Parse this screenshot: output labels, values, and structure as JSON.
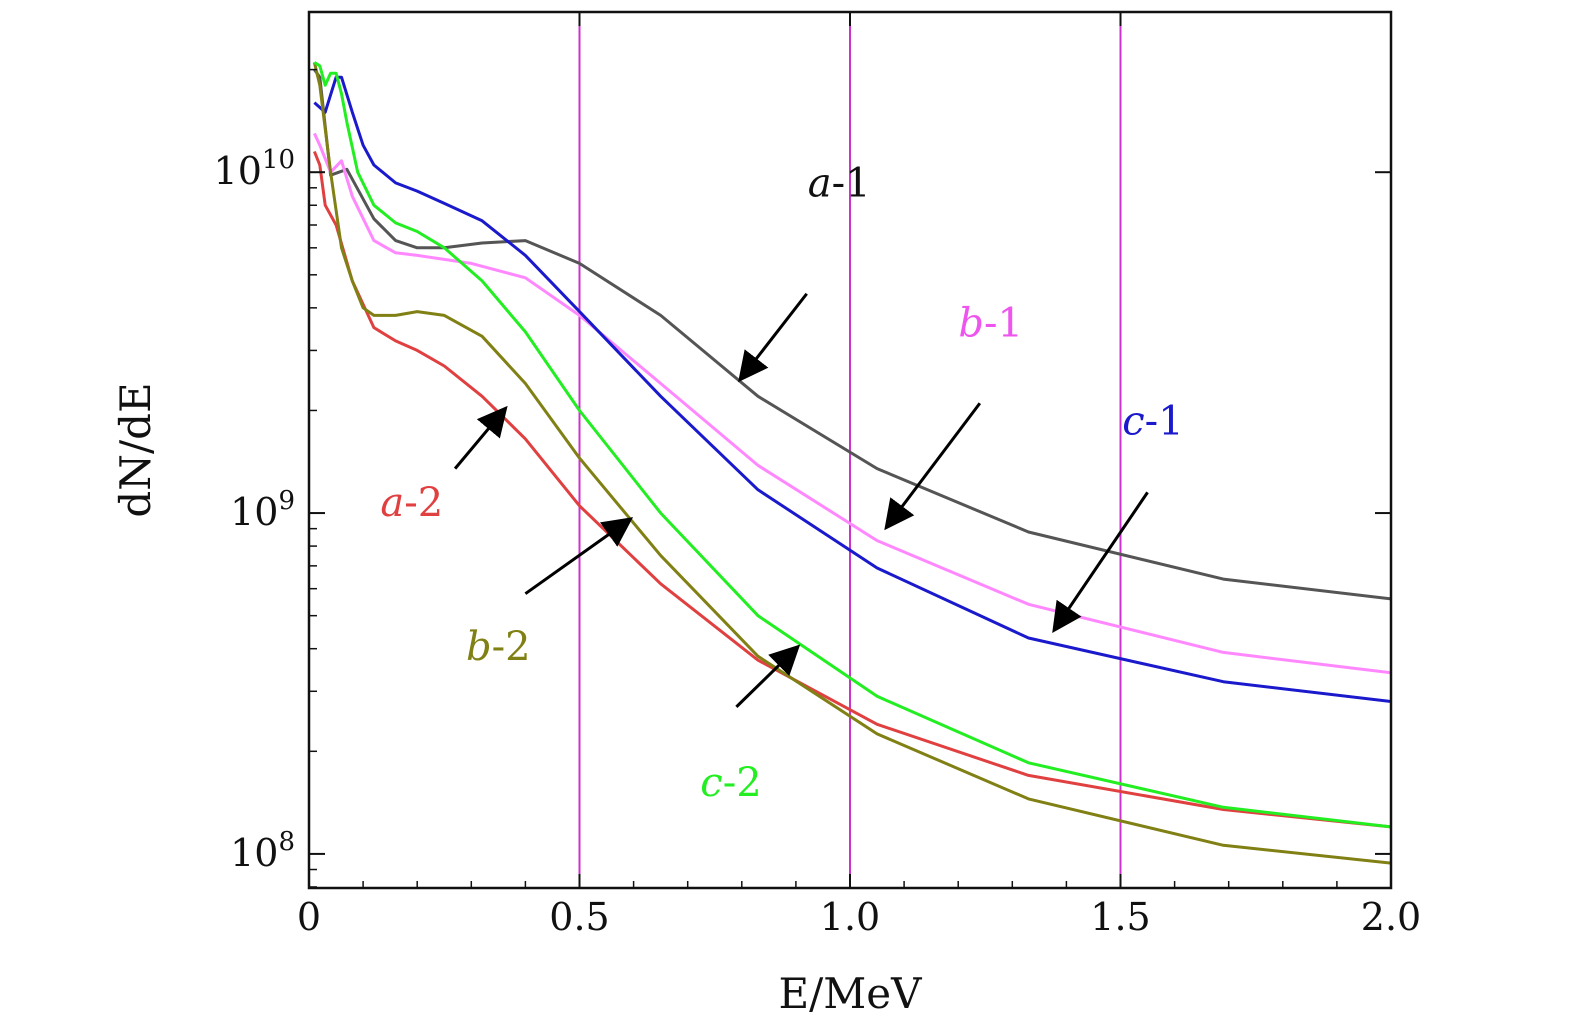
{
  "chart_data": {
    "type": "line",
    "title": "",
    "xlabel": "E/MeV",
    "ylabel": "dN/dE",
    "xlim": [
      0,
      2.0
    ],
    "ylim_log10": [
      7.9,
      10.47
    ],
    "y_scale": "log",
    "x_ticks": [
      0,
      0.5,
      1.0,
      1.5,
      2.0
    ],
    "x_tick_labels": [
      "0",
      "0.5",
      "1.0",
      "1.5",
      "2.0"
    ],
    "y_ticks": [
      100000000,
      1000000000,
      10000000000
    ],
    "y_tick_labels": [
      {
        "base": "10",
        "exp": "8"
      },
      {
        "base": "10",
        "exp": "9"
      },
      {
        "base": "10",
        "exp": "10"
      }
    ],
    "vertical_lines": [
      0.5,
      1.0,
      1.5
    ],
    "vertical_line_color": "#cc33cc",
    "series": [
      {
        "name": "a-1",
        "color": "#555555",
        "x": [
          0.01,
          0.02,
          0.04,
          0.07,
          0.12,
          0.16,
          0.2,
          0.25,
          0.32,
          0.4,
          0.5,
          0.65,
          0.83,
          1.05,
          1.33,
          1.69,
          2.0
        ],
        "y": [
          20000000000,
          19000000000,
          9800000000,
          10200000000,
          7300000000,
          6300000000,
          6000000000,
          6000000000,
          6200000000,
          6300000000,
          5400000000,
          3800000000,
          2200000000,
          1350000000,
          880000000,
          640000000,
          560000000
        ]
      },
      {
        "name": "b-1",
        "color": "#ff88ff",
        "x": [
          0.01,
          0.02,
          0.04,
          0.06,
          0.08,
          0.12,
          0.16,
          0.2,
          0.3,
          0.4,
          0.5,
          0.65,
          0.83,
          1.05,
          1.33,
          1.69,
          2.0
        ],
        "y": [
          13000000000,
          12000000000,
          10000000000,
          10800000000,
          8500000000,
          6300000000,
          5800000000,
          5700000000,
          5400000000,
          4900000000,
          3800000000,
          2400000000,
          1380000000,
          830000000,
          540000000,
          390000000,
          340000000
        ]
      },
      {
        "name": "c-1",
        "color": "#1a1acc",
        "x": [
          0.01,
          0.03,
          0.05,
          0.06,
          0.08,
          0.1,
          0.12,
          0.16,
          0.2,
          0.25,
          0.32,
          0.4,
          0.5,
          0.65,
          0.83,
          1.05,
          1.33,
          1.69,
          2.0
        ],
        "y": [
          16000000000,
          15000000000,
          19000000000,
          19000000000,
          15000000000,
          12000000000,
          10500000000,
          9300000000,
          8800000000,
          8100000000,
          7200000000,
          5700000000,
          3900000000,
          2200000000,
          1170000000,
          690000000,
          430000000,
          320000000,
          280000000
        ]
      },
      {
        "name": "a-2",
        "color": "#e04040",
        "x": [
          0.01,
          0.02,
          0.03,
          0.05,
          0.08,
          0.12,
          0.16,
          0.2,
          0.25,
          0.32,
          0.4,
          0.5,
          0.65,
          0.83,
          1.05,
          1.33,
          1.69,
          2.0
        ],
        "y": [
          11500000000,
          10500000000,
          8000000000,
          7000000000,
          4800000000,
          3500000000,
          3200000000,
          3000000000,
          2700000000,
          2200000000,
          1650000000,
          1050000000,
          620000000,
          370000000,
          240000000,
          170000000,
          135000000,
          120000000
        ]
      },
      {
        "name": "b-2",
        "color": "#808015",
        "x": [
          0.01,
          0.02,
          0.04,
          0.06,
          0.08,
          0.1,
          0.12,
          0.16,
          0.2,
          0.25,
          0.32,
          0.4,
          0.5,
          0.65,
          0.83,
          1.05,
          1.33,
          1.69,
          2.0
        ],
        "y": [
          21000000000,
          18000000000,
          10000000000,
          6000000000,
          4800000000,
          4000000000,
          3800000000,
          3800000000,
          3900000000,
          3800000000,
          3300000000,
          2400000000,
          1450000000,
          750000000,
          380000000,
          225000000,
          145000000,
          106000000,
          94000000
        ]
      },
      {
        "name": "c-2",
        "color": "#22ee22",
        "x": [
          0.01,
          0.02,
          0.03,
          0.04,
          0.05,
          0.06,
          0.07,
          0.09,
          0.12,
          0.16,
          0.2,
          0.25,
          0.32,
          0.4,
          0.5,
          0.65,
          0.83,
          1.05,
          1.33,
          1.69,
          2.0
        ],
        "y": [
          21000000000,
          20500000000,
          18000000000,
          19500000000,
          19500000000,
          17000000000,
          14000000000,
          10000000000,
          8000000000,
          7100000000,
          6700000000,
          6000000000,
          4800000000,
          3400000000,
          2000000000,
          1000000000,
          500000000,
          290000000,
          185000000,
          137000000,
          120000000
        ]
      }
    ],
    "annotations": [
      {
        "series": "a-1",
        "var": "a",
        "suffix": "-1",
        "color": "#111111",
        "label_at": [
          0.98,
          8500000000
        ],
        "arrow_from": [
          0.92,
          4400000000
        ],
        "arrow_to": [
          0.8,
          2500000000
        ]
      },
      {
        "series": "b-1",
        "var": "b",
        "suffix": "-1",
        "color": "#ee55ee",
        "label_at": [
          1.26,
          3300000000
        ],
        "arrow_from": [
          1.24,
          2100000000
        ],
        "arrow_to": [
          1.07,
          920000000
        ]
      },
      {
        "series": "c-1",
        "var": "c",
        "suffix": "-1",
        "color": "#1a1acc",
        "label_at": [
          1.56,
          1700000000
        ],
        "arrow_from": [
          1.55,
          1150000000
        ],
        "arrow_to": [
          1.38,
          460000000
        ]
      },
      {
        "series": "a-2",
        "var": "a",
        "suffix": "-2",
        "color": "#e04040",
        "label_at": [
          0.19,
          980000000
        ],
        "arrow_from": [
          0.27,
          1350000000
        ],
        "arrow_to": [
          0.36,
          2000000000
        ]
      },
      {
        "series": "b-2",
        "var": "b",
        "suffix": "-2",
        "color": "#808015",
        "label_at": [
          0.35,
          370000000
        ],
        "arrow_from": [
          0.4,
          580000000
        ],
        "arrow_to": [
          0.59,
          950000000
        ]
      },
      {
        "series": "c-2",
        "var": "c",
        "suffix": "-2",
        "color": "#22ee22",
        "label_at": [
          0.78,
          148000000
        ],
        "arrow_from": [
          0.79,
          270000000
        ],
        "arrow_to": [
          0.9,
          400000000
        ]
      }
    ]
  }
}
